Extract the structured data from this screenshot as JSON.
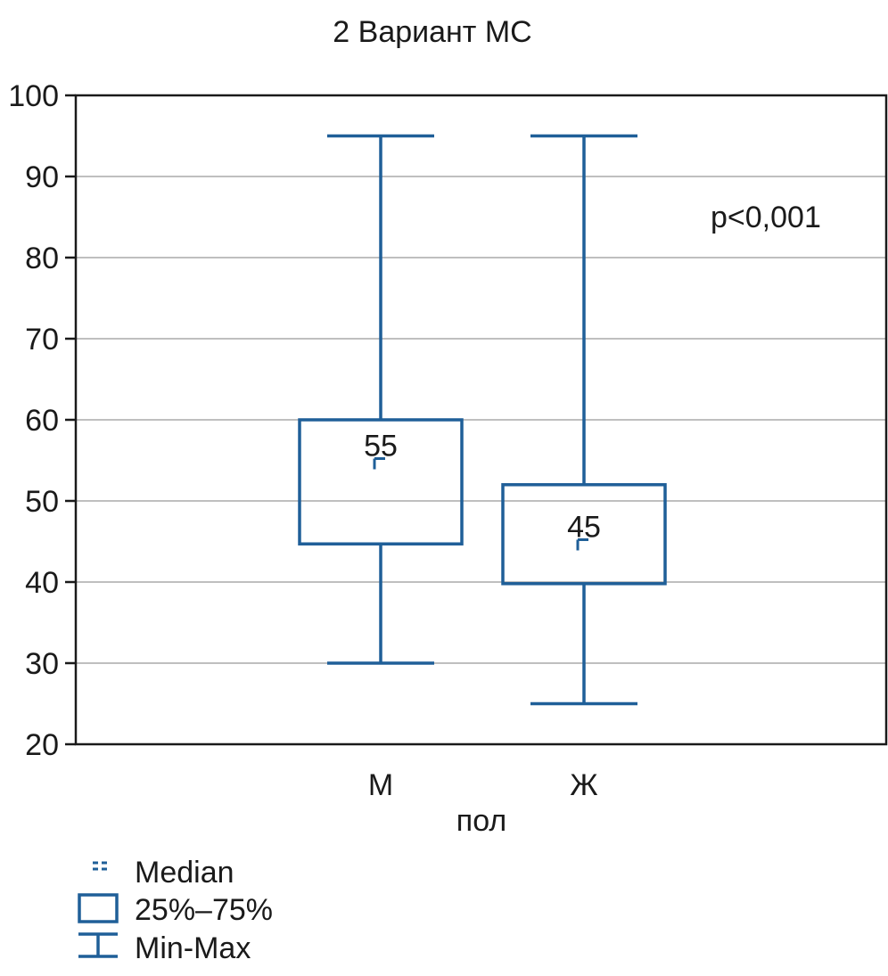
{
  "chart_data": {
    "type": "box",
    "title": "2 Вариант МС",
    "xlabel": "пол",
    "ylabel": "",
    "ylim": [
      20,
      100
    ],
    "yticks": [
      20,
      30,
      40,
      50,
      60,
      70,
      80,
      90,
      100
    ],
    "grid": true,
    "categories": [
      "М",
      "Ж"
    ],
    "boxes": [
      {
        "category": "М",
        "min": 30,
        "q1": 44.7,
        "median": 55,
        "q3": 60,
        "max": 95
      },
      {
        "category": "Ж",
        "min": 25,
        "q1": 39.8,
        "median": 45,
        "q3": 52,
        "max": 95
      }
    ],
    "median_labels": [
      "55",
      "45"
    ],
    "annotation": "p<0,001",
    "legend": {
      "placement": "bottom-left",
      "entries": [
        "Median",
        "25%–75%",
        "Min-Max"
      ]
    },
    "colors": {
      "series": "#1f5f98",
      "grid": "#999999",
      "axis": "#1a1a1a"
    }
  }
}
